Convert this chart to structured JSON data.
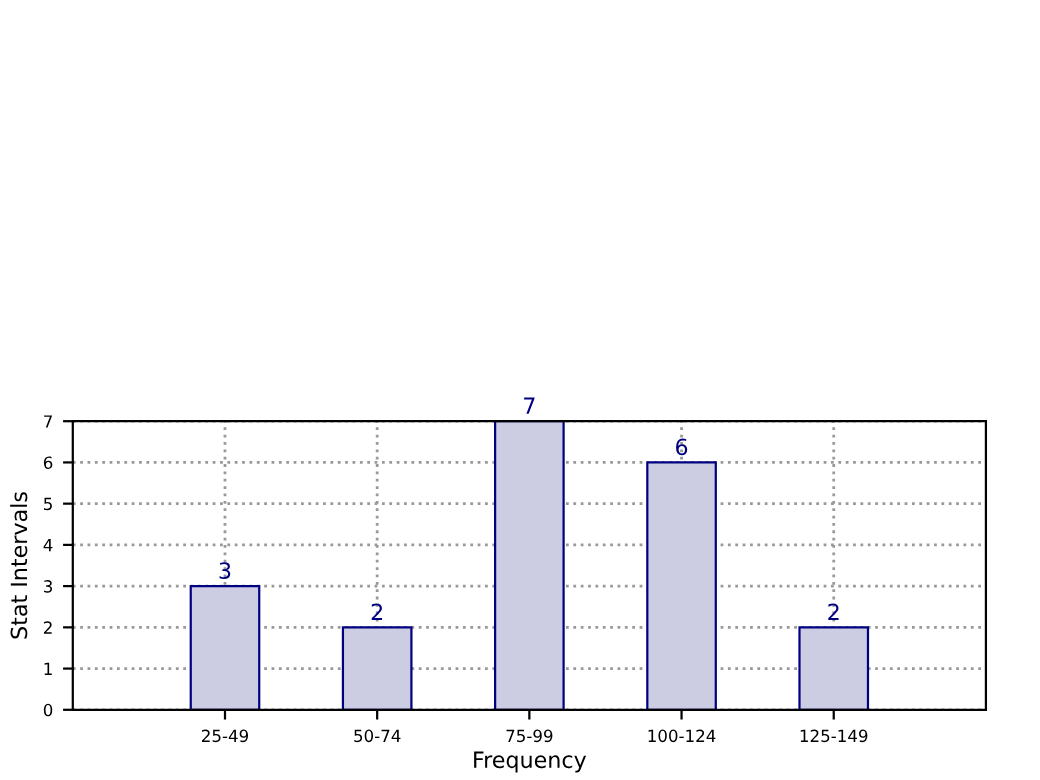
{
  "chart_data": {
    "type": "bar",
    "xlabel": "Frequency",
    "ylabel": "Stat Intervals",
    "categories": [
      "25-49",
      "50-74",
      "75-99",
      "100-124",
      "125-149"
    ],
    "values": [
      3,
      2,
      7,
      6,
      2
    ],
    "color": "#cccce3",
    "ylim": [
      0,
      7
    ],
    "yticks": [
      0,
      1,
      2,
      3,
      4,
      5,
      6,
      7
    ],
    "grid": true,
    "data_labels": true
  }
}
